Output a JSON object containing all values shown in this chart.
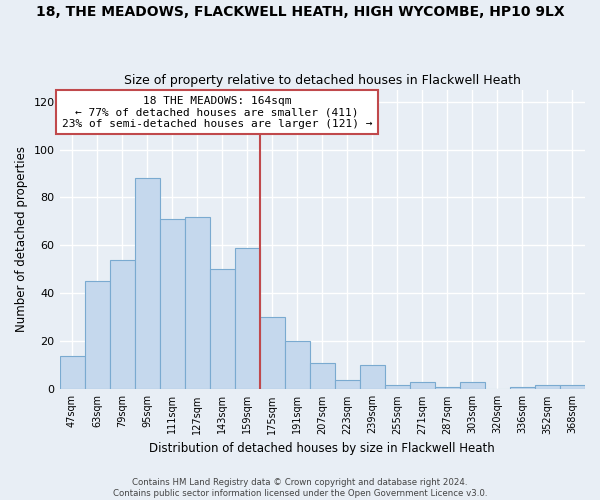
{
  "title": "18, THE MEADOWS, FLACKWELL HEATH, HIGH WYCOMBE, HP10 9LX",
  "subtitle": "Size of property relative to detached houses in Flackwell Heath",
  "xlabel": "Distribution of detached houses by size in Flackwell Heath",
  "ylabel": "Number of detached properties",
  "bar_labels": [
    "47sqm",
    "63sqm",
    "79sqm",
    "95sqm",
    "111sqm",
    "127sqm",
    "143sqm",
    "159sqm",
    "175sqm",
    "191sqm",
    "207sqm",
    "223sqm",
    "239sqm",
    "255sqm",
    "271sqm",
    "287sqm",
    "303sqm",
    "320sqm",
    "336sqm",
    "352sqm",
    "368sqm"
  ],
  "bar_values": [
    14,
    45,
    54,
    88,
    71,
    72,
    50,
    59,
    30,
    20,
    11,
    4,
    10,
    2,
    3,
    1,
    3,
    0,
    1,
    2,
    2
  ],
  "bar_color_normal": "#c5d8ed",
  "bar_color_edge": "#7aaad0",
  "bar_color_highlight": "#c0494c",
  "highlight_line_index": 7,
  "ylim": [
    0,
    125
  ],
  "yticks": [
    0,
    20,
    40,
    60,
    80,
    100,
    120
  ],
  "annotation_title": "18 THE MEADOWS: 164sqm",
  "annotation_line1": "← 77% of detached houses are smaller (411)",
  "annotation_line2": "23% of semi-detached houses are larger (121) →",
  "annotation_box_color": "#ffffff",
  "annotation_box_edge": "#c0494c",
  "footer_line1": "Contains HM Land Registry data © Crown copyright and database right 2024.",
  "footer_line2": "Contains public sector information licensed under the Open Government Licence v3.0.",
  "background_color": "#e8eef5",
  "grid_color": "#ffffff",
  "title_fontsize": 10,
  "subtitle_fontsize": 9
}
